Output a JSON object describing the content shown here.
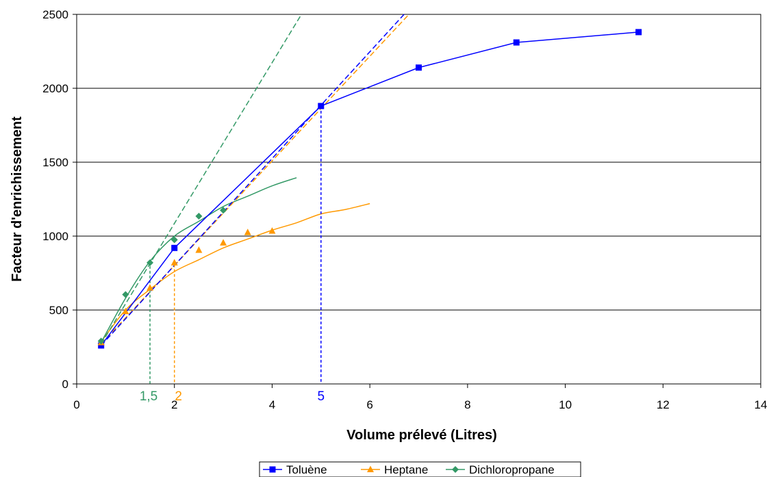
{
  "chart_data": {
    "type": "scatter",
    "title": "",
    "xlabel": "Volume prélevé (Litres)",
    "ylabel": "Facteur d'enrichissement",
    "xlim": [
      0,
      14
    ],
    "ylim": [
      0,
      2500
    ],
    "xticks": [
      "0",
      "2",
      "4",
      "6",
      "8",
      "10",
      "12",
      "14"
    ],
    "yticks": [
      "0",
      "500",
      "1000",
      "1500",
      "2000",
      "2500"
    ],
    "grid": "horizontal",
    "legend_position": "bottom",
    "series": [
      {
        "name": "Toluène",
        "color": "#0000ff",
        "marker": "square",
        "points": [
          [
            0.5,
            260
          ],
          [
            2,
            920
          ],
          [
            5,
            1880
          ],
          [
            7,
            2140
          ],
          [
            9,
            2310
          ],
          [
            11.5,
            2380
          ]
        ],
        "connected": true
      },
      {
        "name": "Heptane",
        "color": "#ff9900",
        "marker": "triangle",
        "points": [
          [
            0.5,
            280
          ],
          [
            1,
            490
          ],
          [
            1.5,
            650
          ],
          [
            2,
            820
          ],
          [
            2.5,
            905
          ],
          [
            3,
            955
          ],
          [
            3.5,
            1025
          ],
          [
            4,
            1035
          ]
        ],
        "connected": false
      },
      {
        "name": "Dichloropropane",
        "color": "#339966",
        "marker": "diamond",
        "points": [
          [
            0.5,
            290
          ],
          [
            1,
            605
          ],
          [
            1.5,
            820
          ],
          [
            2,
            975
          ],
          [
            2.5,
            1135
          ],
          [
            3,
            1175
          ]
        ],
        "connected": false
      }
    ],
    "trendlines": [
      {
        "series": "Heptane",
        "kind": "log",
        "color": "#ff9900",
        "x_range": [
          0.5,
          6
        ],
        "points": [
          [
            0.5,
            285
          ],
          [
            1,
            500
          ],
          [
            1.5,
            640
          ],
          [
            2,
            760
          ],
          [
            2.5,
            840
          ],
          [
            3,
            920
          ],
          [
            3.5,
            980
          ],
          [
            4,
            1040
          ],
          [
            4.5,
            1090
          ],
          [
            5,
            1150
          ],
          [
            5.5,
            1180
          ],
          [
            6,
            1220
          ]
        ]
      },
      {
        "series": "Dichloropropane",
        "kind": "log",
        "color": "#339966",
        "x_range": [
          0.5,
          4.5
        ],
        "points": [
          [
            0.5,
            280
          ],
          [
            1,
            580
          ],
          [
            1.5,
            830
          ],
          [
            2,
            1000
          ],
          [
            2.5,
            1100
          ],
          [
            3,
            1200
          ],
          [
            3.5,
            1270
          ],
          [
            4,
            1340
          ],
          [
            4.5,
            1395
          ]
        ]
      }
    ],
    "tangents": [
      {
        "color": "#339966",
        "from": [
          0.5,
          270
        ],
        "to": [
          4.6,
          2500
        ]
      },
      {
        "color": "#ff9900",
        "from": [
          0.5,
          270
        ],
        "to": [
          6.8,
          2500
        ]
      },
      {
        "color": "#0000ff",
        "from": [
          0.5,
          260
        ],
        "to": [
          6.7,
          2500
        ]
      }
    ],
    "annotations": [
      {
        "text": "1,5",
        "x": 1.5,
        "y": 830,
        "color": "#339966"
      },
      {
        "text": "2",
        "x": 2,
        "y": 840,
        "color": "#ff9900"
      },
      {
        "text": "5",
        "x": 5,
        "y": 1880,
        "color": "#0000ff"
      }
    ]
  }
}
